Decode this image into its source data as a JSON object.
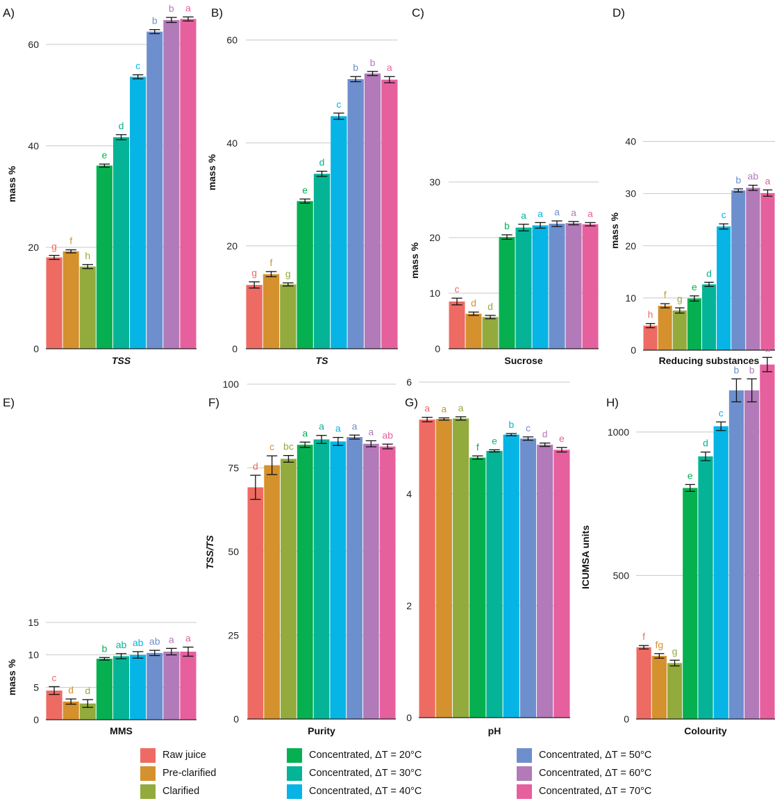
{
  "chart_data": [
    {
      "id": "A",
      "panel_label": "A)",
      "type": "bar",
      "xlabel": "TSS",
      "xlabel_italic": true,
      "ylabel": "mass %",
      "ylim": [
        0,
        66
      ],
      "ticks": [
        "0",
        "20",
        "40",
        "60"
      ],
      "values": [
        18.0,
        19.2,
        16.2,
        36.1,
        41.7,
        53.6,
        62.5,
        64.8,
        65.0
      ],
      "errors": [
        0.4,
        0.3,
        0.4,
        0.3,
        0.5,
        0.4,
        0.4,
        0.5,
        0.4
      ],
      "letters": [
        "g",
        "f",
        "h",
        "e",
        "d",
        "c",
        "b",
        "b",
        "a"
      ]
    },
    {
      "id": "B",
      "panel_label": "B)",
      "type": "bar",
      "xlabel": "TS",
      "xlabel_italic": true,
      "ylabel": "mass %",
      "ylim": [
        0,
        64
      ],
      "ticks": [
        "0",
        "20",
        "40",
        "60"
      ],
      "values": [
        12.4,
        14.5,
        12.5,
        28.7,
        34.0,
        45.2,
        52.4,
        53.5,
        52.3
      ],
      "errors": [
        0.6,
        0.5,
        0.3,
        0.4,
        0.5,
        0.6,
        0.5,
        0.4,
        0.6
      ],
      "letters": [
        "g",
        "f",
        "g",
        "e",
        "d",
        "c",
        "b",
        "b",
        "a"
      ]
    },
    {
      "id": "C",
      "panel_label": "C)",
      "type": "bar",
      "xlabel": "Sucrose",
      "xlabel_italic": false,
      "ylabel": "mass %",
      "ylim": [
        0,
        31
      ],
      "ticks": [
        "0",
        "10",
        "20",
        "30"
      ],
      "values": [
        8.5,
        6.3,
        5.7,
        20.1,
        21.8,
        22.2,
        22.5,
        22.6,
        22.4
      ],
      "errors": [
        0.6,
        0.3,
        0.3,
        0.4,
        0.6,
        0.5,
        0.5,
        0.3,
        0.3
      ],
      "letters": [
        "c",
        "d",
        "d",
        "b",
        "a",
        "a",
        "a",
        "a",
        "a"
      ]
    },
    {
      "id": "D",
      "panel_label": "D)",
      "type": "bar",
      "xlabel": "Reducing substances",
      "xlabel_italic": false,
      "ylabel": "mass %",
      "ylim": [
        0,
        41
      ],
      "ticks": [
        "0",
        "10",
        "20",
        "30",
        "40"
      ],
      "values": [
        4.7,
        8.5,
        7.6,
        9.9,
        12.6,
        23.7,
        30.6,
        31.1,
        30.1
      ],
      "errors": [
        0.4,
        0.4,
        0.5,
        0.5,
        0.4,
        0.5,
        0.3,
        0.5,
        0.6
      ],
      "letters": [
        "h",
        "f",
        "g",
        "e",
        "d",
        "c",
        "b",
        "ab",
        "a"
      ]
    },
    {
      "id": "E",
      "panel_label": "E)",
      "type": "bar",
      "xlabel": "MMS",
      "xlabel_italic": false,
      "ylabel": "mass %",
      "ylim": [
        0,
        15
      ],
      "ticks": [
        "0",
        "5",
        "10",
        "15"
      ],
      "values": [
        4.5,
        2.8,
        2.5,
        9.4,
        9.8,
        10.0,
        10.3,
        10.5,
        10.5
      ],
      "errors": [
        0.6,
        0.4,
        0.6,
        0.2,
        0.4,
        0.5,
        0.4,
        0.5,
        0.7
      ],
      "letters": [
        "c",
        "d",
        "d",
        "b",
        "ab",
        "ab",
        "ab",
        "a",
        "a"
      ]
    },
    {
      "id": "F",
      "panel_label": "F)",
      "type": "bar",
      "xlabel": "Purity",
      "xlabel_italic": false,
      "ylabel": "TSS/TS",
      "ylabel_italic": true,
      "ylim": [
        0,
        100
      ],
      "ticks": [
        "0",
        "25",
        "50",
        "75",
        "100"
      ],
      "values": [
        69.2,
        75.8,
        77.7,
        81.9,
        83.5,
        82.9,
        84.2,
        82.2,
        81.4
      ],
      "errors": [
        3.6,
        2.8,
        1.0,
        0.8,
        1.2,
        1.2,
        0.6,
        0.9,
        0.7
      ],
      "letters": [
        "d",
        "c",
        "bc",
        "a",
        "a",
        "a",
        "a",
        "a",
        "ab"
      ]
    },
    {
      "id": "G",
      "panel_label": "G)",
      "type": "bar",
      "xlabel": "pH",
      "xlabel_italic": false,
      "ylabel": "",
      "ylim": [
        0,
        6
      ],
      "ticks": [
        "0",
        "2",
        "4",
        "6"
      ],
      "values": [
        5.33,
        5.34,
        5.35,
        4.65,
        4.77,
        5.06,
        4.99,
        4.88,
        4.79
      ],
      "errors": [
        0.04,
        0.02,
        0.03,
        0.03,
        0.02,
        0.02,
        0.03,
        0.03,
        0.04
      ],
      "letters": [
        "a",
        "a",
        "a",
        "f",
        "e",
        "b",
        "c",
        "d",
        "e"
      ]
    },
    {
      "id": "H",
      "panel_label": "H)",
      "type": "bar",
      "xlabel": "Colourity",
      "xlabel_italic": false,
      "ylabel": "ICUMSA units",
      "ylim": [
        0,
        1290
      ],
      "ticks": [
        "0",
        "500",
        "1000"
      ],
      "values": [
        250,
        220,
        195,
        805,
        915,
        1020,
        1145,
        1145,
        1235
      ],
      "errors": [
        6,
        8,
        10,
        12,
        15,
        15,
        40,
        40,
        25
      ],
      "letters": [
        "f",
        "fg",
        "g",
        "e",
        "d",
        "c",
        "b",
        "b",
        "a"
      ]
    }
  ],
  "series": [
    {
      "name": "Raw juice",
      "color": "#ee6b63"
    },
    {
      "name": "Pre-clarified",
      "color": "#d4912e"
    },
    {
      "name": "Clarified",
      "color": "#93aa3d"
    },
    {
      "name": "Concentrated, ΔT = 20°C",
      "color": "#06b050"
    },
    {
      "name": "Concentrated, ΔT = 30°C",
      "color": "#05b496"
    },
    {
      "name": "Concentrated, ΔT = 40°C",
      "color": "#06b5e6"
    },
    {
      "name": "Concentrated, ΔT = 50°C",
      "color": "#6e8fce"
    },
    {
      "name": "Concentrated, ΔT = 60°C",
      "color": "#b27ab8"
    },
    {
      "name": "Concentrated, ΔT = 70°C",
      "color": "#e6609e"
    }
  ]
}
